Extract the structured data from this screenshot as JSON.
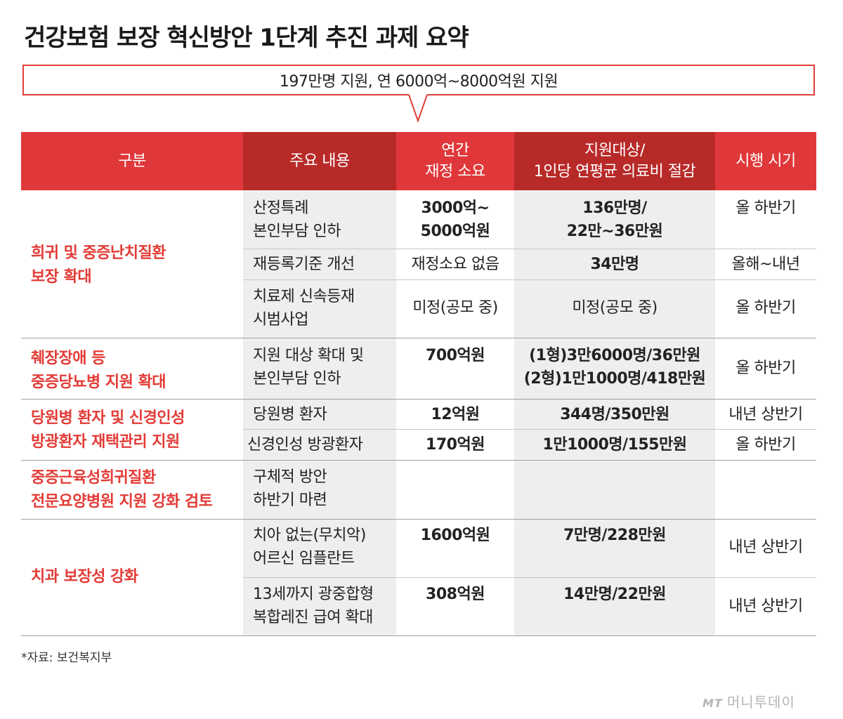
{
  "title": "건강보험 보장 혁신방안 1단계 추진 과제 요약",
  "callout": "197만명 지원, 연 6000억~8000억원 지원",
  "headers": {
    "category": "구분",
    "content": "주요 내용",
    "budget": "연간\n재정 소요",
    "target": "지원대상/\n1인당 연평균 의료비 절감",
    "timing": "시행 시기"
  },
  "categories": [
    "희귀 및 중증난치질환\n보장 확대",
    "췌장장애 등\n중증당뇨병 지원 확대",
    "당원병 환자 및 신경인성\n방광환자 재택관리 지원",
    "중증근육성희귀질환\n전문요양병원 지원 강화 검토",
    "치과 보장성 강화"
  ],
  "rows": [
    {
      "content": "산정특례\n본인부담 인하",
      "budget": "3000억~\n5000억원",
      "target": "136만명/\n22만~36만원",
      "timing": "올 하반기"
    },
    {
      "content": "재등록기준 개선",
      "budget": "재정소요 없음",
      "target": "34만명",
      "timing": "올해~내년"
    },
    {
      "content": "치료제 신속등재\n시범사업",
      "budget": "미정(공모 중)",
      "target": "미정(공모 중)",
      "timing": "올 하반기"
    },
    {
      "content": "지원 대상 확대 및\n본인부담 인하",
      "budget": "700억원",
      "target": "(1형)3만6000명/36만원\n(2형)1만1000명/418만원",
      "timing": "올 하반기"
    },
    {
      "content": "당원병 환자",
      "budget": "12억원",
      "target": "344명/350만원",
      "timing": "내년 상반기"
    },
    {
      "content": "신경인성 방광환자",
      "budget": "170억원",
      "target": "1만1000명/155만원",
      "timing": "올 하반기"
    },
    {
      "content": "구체적 방안\n하반기 마련",
      "budget": "",
      "target": "",
      "timing": ""
    },
    {
      "content": "치아 없는(무치악)\n어르신 임플란트",
      "budget": "1600억원",
      "target": "7만명/228만원",
      "timing": "내년 상반기"
    },
    {
      "content": "13세까지 광중합형\n복합레진 급여 확대",
      "budget": "308억원",
      "target": "14만명/22만원",
      "timing": "내년 상반기"
    }
  ],
  "source": "*자료: 보건복지부",
  "logo": {
    "mark": "MT",
    "text": "머니투데이"
  },
  "colors": {
    "accent": "#e0383a",
    "accent_dark": "#b82a28",
    "category_text": "#e33b36",
    "grey_column": "#eeeeee"
  }
}
